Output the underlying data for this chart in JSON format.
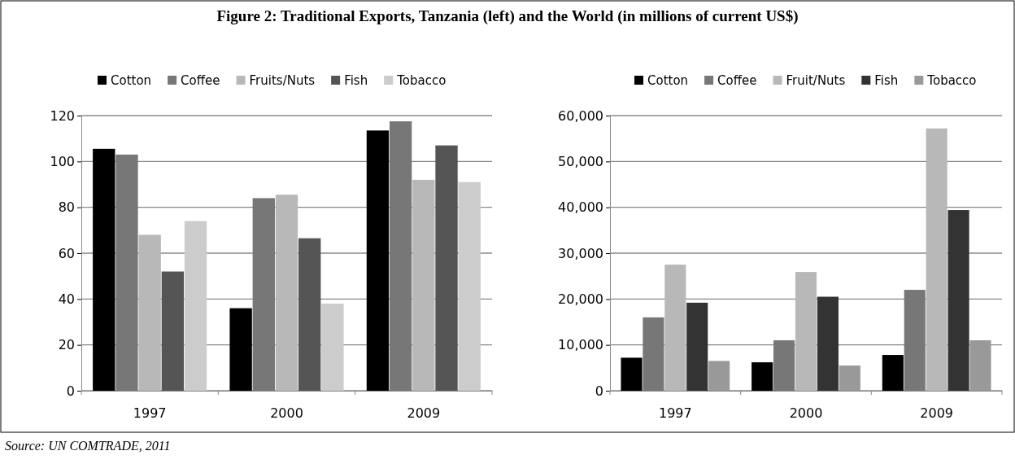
{
  "chart_data": [
    {
      "type": "bar",
      "title": "Figure 2: Traditional Exports, Tanzania (left) and the World (in millions of current US$)",
      "categories": [
        "1997",
        "2000",
        "2009"
      ],
      "series": [
        {
          "name": "Cotton",
          "color": "#000000",
          "values": [
            105.5,
            36,
            113.5
          ]
        },
        {
          "name": "Coffee",
          "color": "#777777",
          "values": [
            103,
            84,
            117.5
          ]
        },
        {
          "name": "Fruits/Nuts",
          "color": "#b8b8b8",
          "values": [
            68,
            85.5,
            92
          ]
        },
        {
          "name": "Fish",
          "color": "#555555",
          "values": [
            52,
            66.5,
            107
          ]
        },
        {
          "name": "Tobacco",
          "color": "#cccccc",
          "values": [
            74,
            38,
            91
          ]
        }
      ],
      "ylim": [
        0,
        120
      ],
      "yticks": [
        0,
        20,
        40,
        60,
        80,
        100,
        120
      ],
      "grid": "y",
      "legend": "top",
      "annotations": [
        "Source: UN COMTRADE, 2011"
      ]
    },
    {
      "type": "bar",
      "categories": [
        "1997",
        "2000",
        "2009"
      ],
      "series": [
        {
          "name": "Cotton",
          "color": "#000000",
          "values": [
            7200,
            6200,
            7800
          ]
        },
        {
          "name": "Coffee",
          "color": "#777777",
          "values": [
            16000,
            11000,
            22000
          ]
        },
        {
          "name": "Fruit/Nuts",
          "color": "#b8b8b8",
          "values": [
            27500,
            25900,
            57200
          ]
        },
        {
          "name": "Fish",
          "color": "#333333",
          "values": [
            19200,
            20500,
            39400
          ]
        },
        {
          "name": "Tobacco",
          "color": "#999999",
          "values": [
            6500,
            5500,
            11000
          ]
        }
      ],
      "ylim": [
        0,
        60000
      ],
      "yticks": [
        {
          "value": 0,
          "label": "0"
        },
        {
          "value": 10000,
          "label": "10,000"
        },
        {
          "value": 20000,
          "label": "20,000"
        },
        {
          "value": 30000,
          "label": "30,000"
        },
        {
          "value": 40000,
          "label": "40,000"
        },
        {
          "value": 50000,
          "label": "50,000"
        },
        {
          "value": 60000,
          "label": "60,000"
        }
      ],
      "grid": "y",
      "legend": "top"
    }
  ]
}
